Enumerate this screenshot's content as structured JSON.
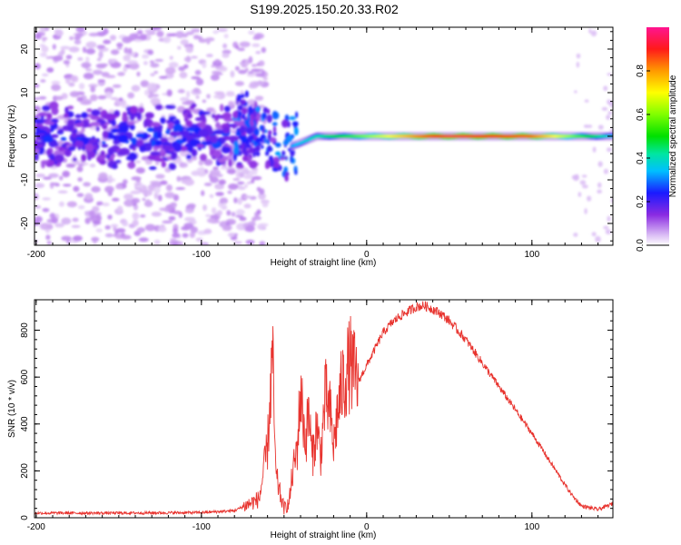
{
  "title": "S199.2025.150.20.33.R02",
  "chart_data": [
    {
      "type": "heatmap",
      "xlabel": "Height of straight line (km)",
      "ylabel": "Frequency (Hz)",
      "xlim": [
        -201,
        149
      ],
      "ylim": [
        -25,
        25
      ],
      "x_ticks": [
        -200,
        -100,
        0,
        100
      ],
      "y_ticks": [
        -20,
        -10,
        0,
        10,
        20
      ],
      "colorbar": {
        "label": "Normalized spectral amplitude",
        "range": [
          0,
          1
        ],
        "ticks": [
          "0.0",
          "0.2",
          "0.4",
          "0.6",
          "0.8"
        ]
      },
      "ridge": {
        "description_points": [
          {
            "x": -200,
            "y_center": 0,
            "amp": 0.2
          },
          {
            "x": -100,
            "y_center": 0,
            "amp": 0.25
          },
          {
            "x": -70,
            "y_center": 3,
            "amp": 0.35
          },
          {
            "x": -50,
            "y_center": -3,
            "amp": 0.3
          },
          {
            "x": -30,
            "y_center": 0,
            "amp": 0.4
          },
          {
            "x": 0,
            "y_center": 0,
            "amp": 0.6
          },
          {
            "x": 50,
            "y_center": 0,
            "amp": 0.95
          },
          {
            "x": 100,
            "y_center": 0,
            "amp": 0.85
          },
          {
            "x": 149,
            "y_center": 0,
            "amp": 0.35
          }
        ]
      }
    },
    {
      "type": "line",
      "xlabel": "Height of straight line (km)",
      "ylabel": "SNR (10 * v/v)",
      "xlim": [
        -201,
        149
      ],
      "ylim": [
        0,
        930
      ],
      "x_ticks": [
        -200,
        -100,
        0,
        100
      ],
      "y_ticks": [
        0,
        200,
        400,
        600,
        800
      ],
      "series": [
        {
          "color": "#e8332e",
          "x": [
            -201,
            -150,
            -100,
            -80,
            -65,
            -60,
            -57,
            -55,
            -52,
            -50,
            -47,
            -45,
            -42,
            -40,
            -37,
            -35,
            -33,
            -30,
            -28,
            -25,
            -22,
            -20,
            -18,
            -15,
            -13,
            -10,
            -8,
            -5,
            0,
            5,
            10,
            15,
            20,
            25,
            30,
            35,
            40,
            45,
            50,
            60,
            70,
            80,
            90,
            100,
            110,
            120,
            125,
            130,
            140,
            149
          ],
          "y": [
            20,
            20,
            22,
            30,
            80,
            300,
            700,
            180,
            90,
            40,
            60,
            180,
            300,
            540,
            320,
            460,
            250,
            400,
            250,
            520,
            440,
            300,
            430,
            560,
            600,
            660,
            620,
            580,
            650,
            720,
            790,
            830,
            860,
            880,
            900,
            905,
            890,
            870,
            840,
            760,
            660,
            560,
            460,
            360,
            250,
            140,
            90,
            50,
            35,
            60
          ]
        }
      ]
    }
  ]
}
